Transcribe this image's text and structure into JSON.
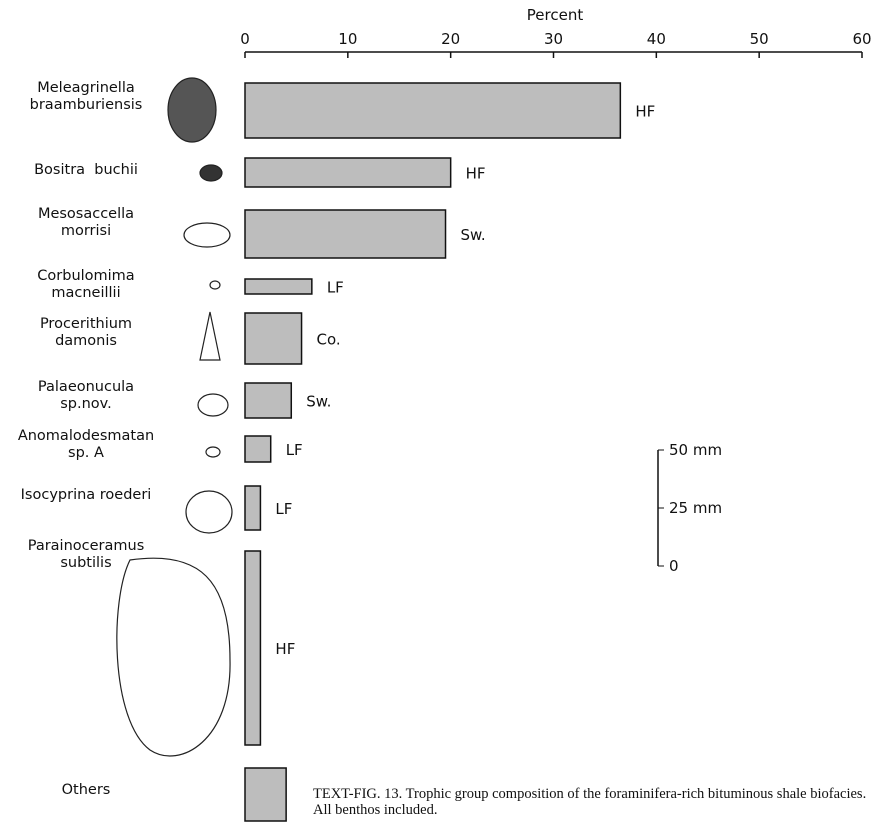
{
  "chart_data": {
    "type": "bar",
    "orientation": "horizontal",
    "x_label": "Percent",
    "categories": [
      "Meleagrinella\nbraamburiensis",
      "Bositra  buchii",
      "Mesosaccella\nmorrisi",
      "Corbulomima\nmacneillii",
      "Procerithium\ndamonis",
      "Palaeonucula\nsp.nov.",
      "Anomalodesmatan\nsp. A",
      "Isocyprina roederi",
      "Parainoceramus\nsubtilis",
      "Others"
    ],
    "values": [
      36.5,
      20,
      19.5,
      6.5,
      5.5,
      4.5,
      2.5,
      1.5,
      1.5,
      4
    ],
    "group_labels": [
      "HF",
      "HF",
      "Sw.",
      "LF",
      "Co.",
      "Sw.",
      "LF",
      "LF",
      "HF",
      null
    ],
    "color": "#bdbdbd",
    "xlim": [
      0,
      60
    ],
    "xticks": [
      0,
      10,
      20,
      30,
      40,
      50,
      60
    ],
    "scale_bar": [
      "50 mm",
      "25 mm",
      "0"
    ],
    "caption": "TEXT-FIG. 13. Trophic group composition of the foraminifera-rich bituminous shale biofacies. All benthos included."
  }
}
